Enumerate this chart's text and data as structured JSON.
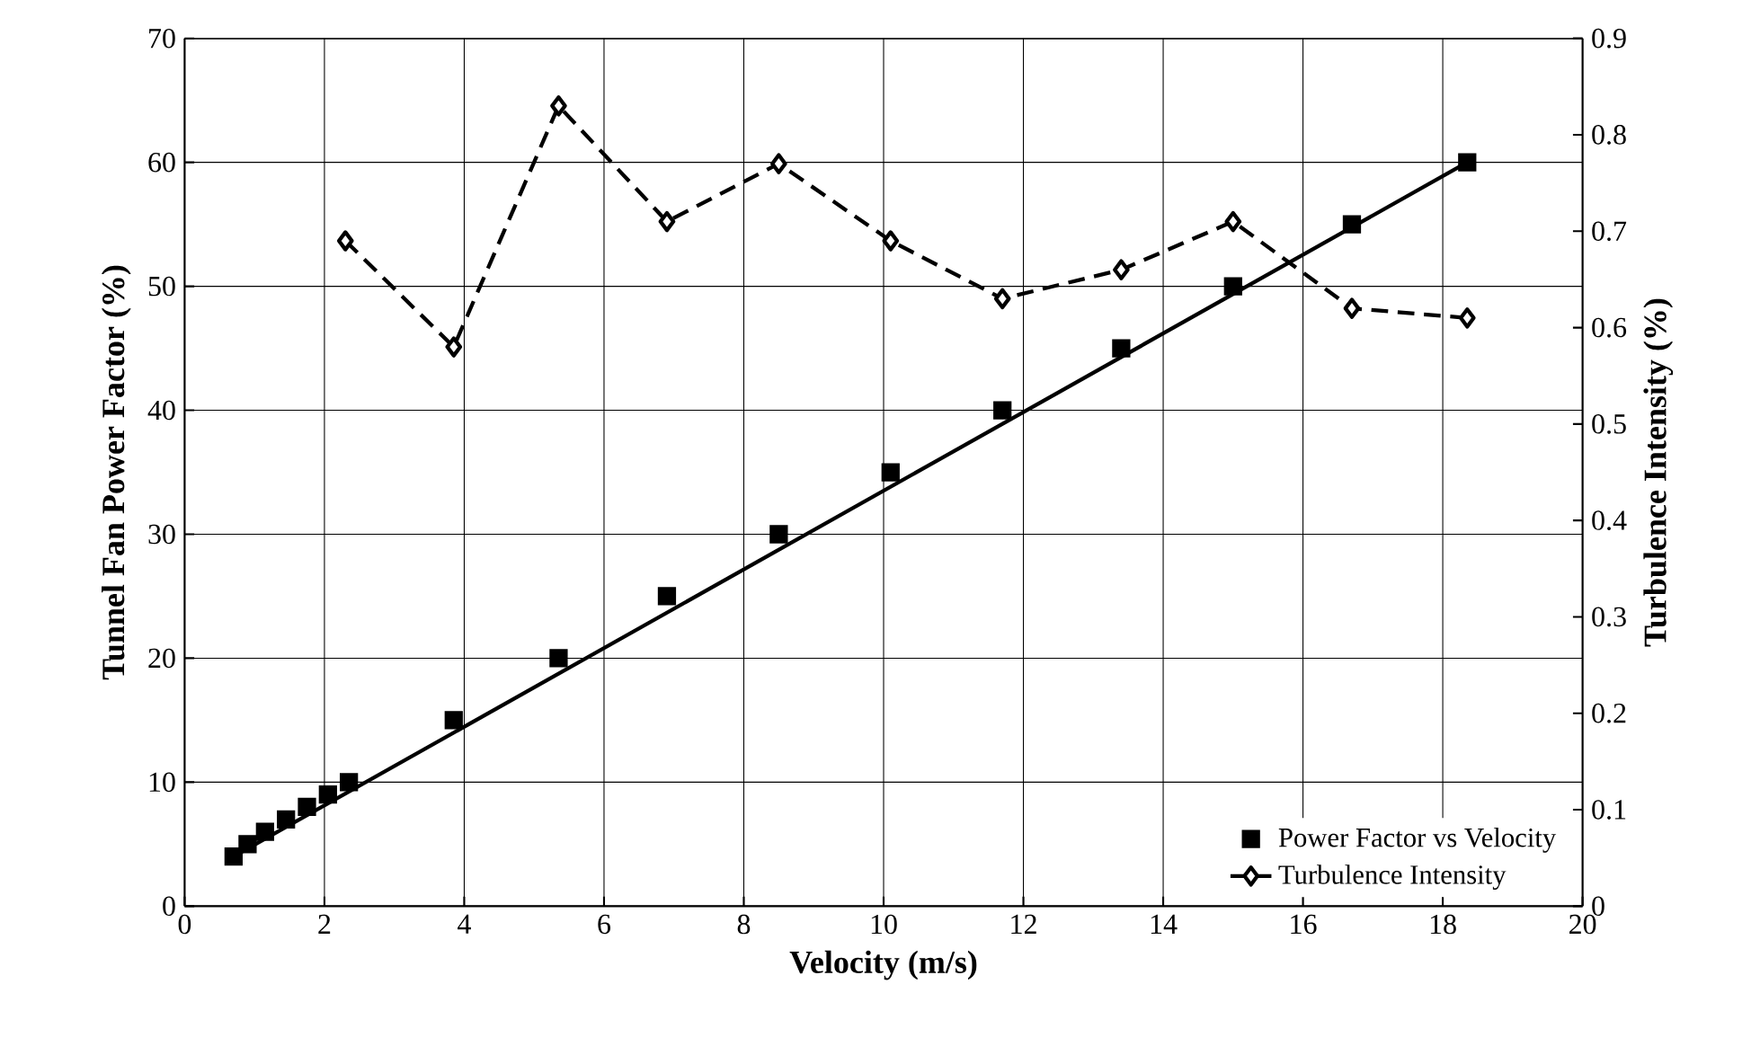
{
  "chart_data": {
    "type": "scatter",
    "xlabel": "Velocity (m/s)",
    "ylabel": "Tunnel Fan Power Factor (%)",
    "y2label": "Turbulence Intensity (%)",
    "xlim": [
      0,
      20
    ],
    "xticks": [
      0,
      2,
      4,
      6,
      8,
      10,
      12,
      14,
      16,
      18,
      20
    ],
    "ylim": [
      0,
      70
    ],
    "yticks": [
      0,
      10,
      20,
      30,
      40,
      50,
      60,
      70
    ],
    "y2lim": [
      0,
      0.9
    ],
    "y2ticks": [
      0,
      0.1,
      0.2,
      0.3,
      0.4,
      0.5,
      0.6,
      0.7,
      0.8,
      0.9
    ],
    "grid": true,
    "legend": "bottom right",
    "series": [
      {
        "name": "Power Factor vs Velocity",
        "marker": "square",
        "color": "#000000",
        "x": [
          0.7,
          0.9,
          1.15,
          1.45,
          1.75,
          2.05,
          2.35,
          3.85,
          5.35,
          6.9,
          8.5,
          10.1,
          11.7,
          13.4,
          15.0,
          16.7,
          18.35
        ],
        "values": [
          4,
          5,
          6,
          7,
          8,
          9,
          10,
          15,
          20,
          25,
          30,
          35,
          40,
          45,
          50,
          55,
          60
        ]
      },
      {
        "type": "line",
        "marker": "none",
        "line_style": "solid",
        "color": "#000000",
        "x": [
          0.7,
          18.35
        ],
        "values": [
          4,
          60
        ]
      },
      {
        "name": "Turbulence Intensity",
        "type": "line",
        "marker": "diamond",
        "line_style": "dashed",
        "axis": "y2",
        "color": "#000000",
        "x": [
          2.3,
          3.85,
          5.35,
          6.9,
          8.5,
          10.1,
          11.7,
          13.4,
          15.0,
          16.7,
          18.35
        ],
        "values": [
          0.69,
          0.58,
          0.83,
          0.71,
          0.77,
          0.69,
          0.63,
          0.66,
          0.71,
          0.62,
          0.61
        ]
      }
    ]
  }
}
